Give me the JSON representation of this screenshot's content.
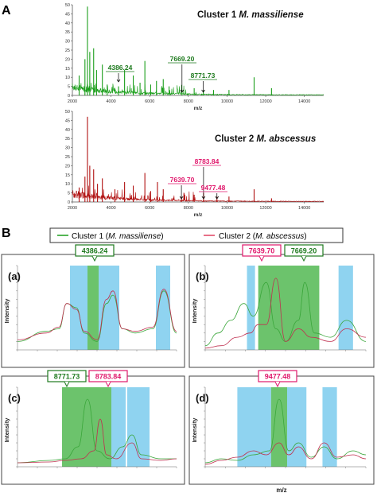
{
  "figure": {
    "label_A": "A",
    "label_B": "B",
    "legend": {
      "cluster1_text": "Cluster 1 (",
      "cluster1_species": "M. massiliense",
      "cluster2_text": "Cluster 2 (",
      "cluster2_species": "M. abscessus",
      "close_paren": ")"
    },
    "colors": {
      "cluster1": "#1a9e1a",
      "cluster2": "#b01010",
      "label1": "#1e7a1e",
      "label2": "#e0186c",
      "band_blue": "#8fd3f0",
      "band_green": "#6cc36c"
    }
  },
  "chart_data": [
    {
      "id": "A1",
      "type": "line",
      "title": "Cluster 1",
      "title_species": "M. massiliense",
      "xlabel": "m/z",
      "ylabel": "",
      "xlim": [
        2000,
        15000
      ],
      "ylim": [
        0,
        50
      ],
      "xticks": [
        "2000",
        "4000",
        "6000",
        "8000",
        "10000",
        "12000",
        "14000"
      ],
      "yticks": [
        "0",
        "5",
        "10",
        "15",
        "20",
        "25",
        "30",
        "35",
        "40",
        "45",
        "50"
      ],
      "peaks": [
        [
          2350,
          11
        ],
        [
          2650,
          20
        ],
        [
          2780,
          49
        ],
        [
          2900,
          24
        ],
        [
          3100,
          26
        ],
        [
          3250,
          14
        ],
        [
          3550,
          17
        ],
        [
          3800,
          6
        ],
        [
          4386,
          5
        ],
        [
          4700,
          14
        ],
        [
          5150,
          11
        ],
        [
          5500,
          7
        ],
        [
          5750,
          19
        ],
        [
          6050,
          6
        ],
        [
          6350,
          8
        ],
        [
          6700,
          9
        ],
        [
          7000,
          5
        ],
        [
          7669,
          3
        ],
        [
          8300,
          4
        ],
        [
          8771,
          3
        ],
        [
          9300,
          3
        ],
        [
          10100,
          3
        ],
        [
          11400,
          10
        ],
        [
          12300,
          4
        ]
      ],
      "annotations": [
        {
          "text": "4386.24",
          "x": 4386.24
        },
        {
          "text": "7669.20",
          "x": 7669.2
        },
        {
          "text": "8771.73",
          "x": 8771.73
        }
      ]
    },
    {
      "id": "A2",
      "type": "line",
      "title": "Cluster 2",
      "title_species": "M. abscessus",
      "xlabel": "m/z",
      "ylabel": "",
      "xlim": [
        2000,
        15000
      ],
      "ylim": [
        0,
        50
      ],
      "xticks": [
        "2000",
        "4000",
        "6000",
        "8000",
        "10000",
        "12000",
        "14000"
      ],
      "yticks": [
        "0",
        "5",
        "10",
        "15",
        "20",
        "25",
        "30",
        "35",
        "40",
        "45",
        "50"
      ],
      "peaks": [
        [
          2350,
          8
        ],
        [
          2650,
          14
        ],
        [
          2780,
          47
        ],
        [
          2900,
          20
        ],
        [
          3100,
          18
        ],
        [
          3300,
          10
        ],
        [
          3550,
          13
        ],
        [
          4200,
          7
        ],
        [
          4700,
          11
        ],
        [
          5150,
          9
        ],
        [
          5750,
          16
        ],
        [
          6050,
          6
        ],
        [
          6400,
          11
        ],
        [
          6700,
          7
        ],
        [
          7639,
          3
        ],
        [
          8300,
          4
        ],
        [
          8783,
          5
        ],
        [
          9477,
          3
        ],
        [
          10100,
          3
        ],
        [
          11400,
          7
        ],
        [
          12300,
          2
        ]
      ],
      "annotations": [
        {
          "text": "8783.84",
          "x": 8783.84
        },
        {
          "text": "7639.70",
          "x": 7639.7
        },
        {
          "text": "9477.48",
          "x": 9477.48
        }
      ]
    },
    {
      "id": "Ba",
      "type": "line",
      "panel_label": "(a)",
      "xlabel": "",
      "ylabel": "Intensity",
      "peak_label": "4386.24",
      "bands": [
        {
          "color": "blue",
          "from": 0.33,
          "to": 0.44
        },
        {
          "color": "green",
          "from": 0.44,
          "to": 0.51
        },
        {
          "color": "blue",
          "from": 0.51,
          "to": 0.64
        },
        {
          "color": "blue",
          "from": 0.87,
          "to": 0.96
        }
      ],
      "series_green": [
        [
          0.0,
          0.1
        ],
        [
          0.18,
          0.22
        ],
        [
          0.26,
          0.25
        ],
        [
          0.31,
          0.55
        ],
        [
          0.37,
          0.5
        ],
        [
          0.42,
          0.2
        ],
        [
          0.5,
          0.1
        ],
        [
          0.56,
          0.55
        ],
        [
          0.6,
          0.65
        ],
        [
          0.66,
          0.25
        ],
        [
          0.74,
          0.2
        ],
        [
          0.85,
          0.25
        ],
        [
          0.92,
          0.7
        ],
        [
          1.0,
          0.2
        ]
      ],
      "series_red": [
        [
          0.0,
          0.12
        ],
        [
          0.18,
          0.2
        ],
        [
          0.26,
          0.27
        ],
        [
          0.31,
          0.55
        ],
        [
          0.37,
          0.48
        ],
        [
          0.42,
          0.22
        ],
        [
          0.5,
          0.12
        ],
        [
          0.56,
          0.6
        ],
        [
          0.6,
          0.7
        ],
        [
          0.66,
          0.25
        ],
        [
          0.74,
          0.22
        ],
        [
          0.85,
          0.27
        ],
        [
          0.92,
          0.72
        ],
        [
          1.0,
          0.22
        ]
      ]
    },
    {
      "id": "Bb",
      "type": "line",
      "panel_label": "(b)",
      "xlabel": "",
      "ylabel": "Intensity",
      "peak_labels": [
        "7639.70",
        "7669.20"
      ],
      "bands": [
        {
          "color": "blue",
          "from": 0.26,
          "to": 0.31
        },
        {
          "color": "green",
          "from": 0.33,
          "to": 0.71
        },
        {
          "color": "blue",
          "from": 0.83,
          "to": 0.92
        }
      ],
      "series_green": [
        [
          0.0,
          0.05
        ],
        [
          0.08,
          0.2
        ],
        [
          0.16,
          0.35
        ],
        [
          0.24,
          0.55
        ],
        [
          0.3,
          0.4
        ],
        [
          0.38,
          0.8
        ],
        [
          0.44,
          0.25
        ],
        [
          0.5,
          0.1
        ],
        [
          0.58,
          0.35
        ],
        [
          0.62,
          0.8
        ],
        [
          0.68,
          0.2
        ],
        [
          0.78,
          0.15
        ],
        [
          0.88,
          0.35
        ],
        [
          1.0,
          0.1
        ]
      ],
      "series_red": [
        [
          0.0,
          0.02
        ],
        [
          0.1,
          0.05
        ],
        [
          0.2,
          0.15
        ],
        [
          0.28,
          0.2
        ],
        [
          0.33,
          0.3
        ],
        [
          0.38,
          0.3
        ],
        [
          0.44,
          0.85
        ],
        [
          0.5,
          0.1
        ],
        [
          0.58,
          0.25
        ],
        [
          0.66,
          0.15
        ],
        [
          0.78,
          0.1
        ],
        [
          0.88,
          0.25
        ],
        [
          1.0,
          0.15
        ]
      ]
    },
    {
      "id": "Bc",
      "type": "line",
      "panel_label": "(c)",
      "xlabel": "",
      "ylabel": "Intensity",
      "peak_labels": [
        "8771.73",
        "8783.84"
      ],
      "bands": [
        {
          "color": "green",
          "from": 0.28,
          "to": 0.59
        },
        {
          "color": "blue",
          "from": 0.59,
          "to": 0.68
        },
        {
          "color": "blue",
          "from": 0.69,
          "to": 0.83
        }
      ],
      "series_green": [
        [
          0.0,
          0.05
        ],
        [
          0.2,
          0.08
        ],
        [
          0.3,
          0.1
        ],
        [
          0.38,
          0.25
        ],
        [
          0.44,
          0.85
        ],
        [
          0.5,
          0.2
        ],
        [
          0.58,
          0.1
        ],
        [
          0.66,
          0.25
        ],
        [
          0.72,
          0.4
        ],
        [
          0.78,
          0.15
        ],
        [
          0.9,
          0.1
        ],
        [
          1.0,
          0.1
        ]
      ],
      "series_red": [
        [
          0.0,
          0.05
        ],
        [
          0.2,
          0.06
        ],
        [
          0.3,
          0.08
        ],
        [
          0.4,
          0.1
        ],
        [
          0.48,
          0.2
        ],
        [
          0.52,
          0.6
        ],
        [
          0.56,
          0.15
        ],
        [
          0.62,
          0.1
        ],
        [
          0.72,
          0.3
        ],
        [
          0.78,
          0.1
        ],
        [
          0.9,
          0.08
        ],
        [
          1.0,
          0.1
        ]
      ]
    },
    {
      "id": "Bd",
      "type": "line",
      "panel_label": "(d)",
      "xlabel": "m/z",
      "ylabel": "Intensity",
      "peak_label": "9477.48",
      "bands": [
        {
          "color": "blue",
          "from": 0.2,
          "to": 0.41
        },
        {
          "color": "green",
          "from": 0.41,
          "to": 0.51
        },
        {
          "color": "blue",
          "from": 0.51,
          "to": 0.63
        },
        {
          "color": "blue",
          "from": 0.73,
          "to": 0.82
        }
      ],
      "series_green": [
        [
          0.0,
          0.05
        ],
        [
          0.1,
          0.1
        ],
        [
          0.2,
          0.08
        ],
        [
          0.3,
          0.15
        ],
        [
          0.4,
          0.2
        ],
        [
          0.46,
          0.85
        ],
        [
          0.52,
          0.2
        ],
        [
          0.58,
          0.3
        ],
        [
          0.66,
          0.12
        ],
        [
          0.74,
          0.25
        ],
        [
          0.82,
          0.1
        ],
        [
          0.92,
          0.2
        ],
        [
          1.0,
          0.15
        ]
      ],
      "series_red": [
        [
          0.0,
          0.03
        ],
        [
          0.1,
          0.08
        ],
        [
          0.2,
          0.12
        ],
        [
          0.3,
          0.2
        ],
        [
          0.38,
          0.15
        ],
        [
          0.46,
          0.3
        ],
        [
          0.52,
          0.15
        ],
        [
          0.58,
          0.25
        ],
        [
          0.66,
          0.1
        ],
        [
          0.74,
          0.3
        ],
        [
          0.82,
          0.12
        ],
        [
          0.92,
          0.15
        ],
        [
          1.0,
          0.1
        ]
      ]
    }
  ]
}
